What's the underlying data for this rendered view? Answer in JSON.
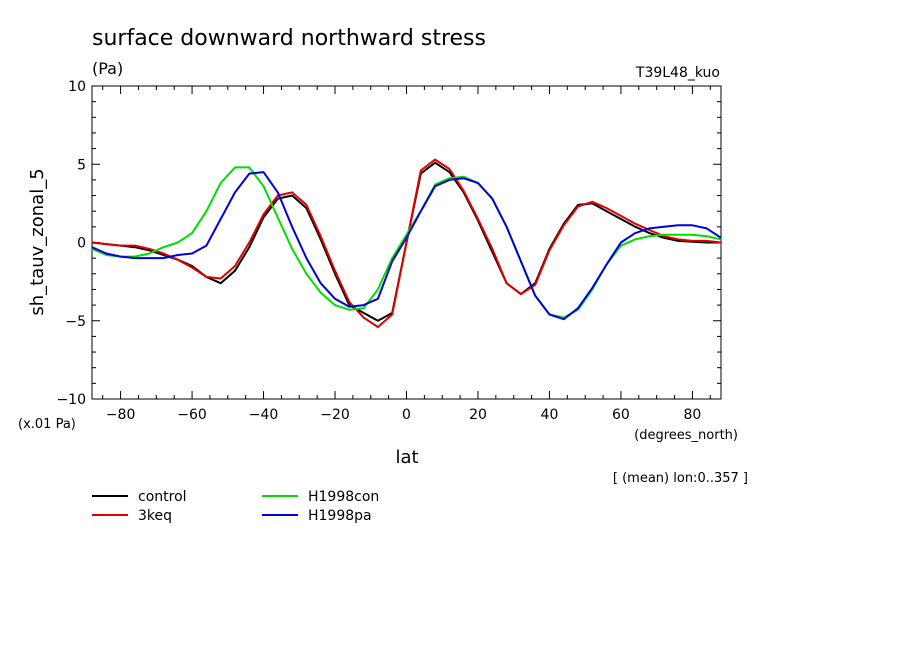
{
  "header": {
    "title": "surface downward northward stress",
    "units": "(Pa)",
    "run_label": "T39L48_kuo",
    "scale_note": "(x.01 Pa)",
    "x_units": "(degrees_north)",
    "mean_note": "[ (mean) lon:0..357 ]"
  },
  "chart_data": {
    "type": "line",
    "title": "surface downward northward stress",
    "xlabel": "lat",
    "ylabel": "sh_tauv_zonal_5",
    "xlim": [
      -88,
      88
    ],
    "ylim": [
      -10,
      10
    ],
    "x_ticks": [
      -80,
      -60,
      -40,
      -20,
      0,
      20,
      40,
      60,
      80
    ],
    "x_tick_labels": [
      "−80",
      "−60",
      "−40",
      "−20",
      "0",
      "20",
      "40",
      "60",
      "80"
    ],
    "y_ticks": [
      -10,
      -5,
      0,
      5,
      10
    ],
    "y_tick_labels": [
      "−10",
      "−5",
      "0",
      "5",
      "10"
    ],
    "grid": false,
    "legend_position": "bottom-left",
    "x": [
      -88,
      -84,
      -80,
      -76,
      -72,
      -68,
      -64,
      -60,
      -56,
      -52,
      -48,
      -44,
      -40,
      -36,
      -32,
      -28,
      -24,
      -20,
      -16,
      -12,
      -8,
      -4,
      0,
      4,
      8,
      12,
      16,
      20,
      24,
      28,
      32,
      36,
      40,
      44,
      48,
      52,
      56,
      60,
      64,
      68,
      72,
      76,
      80,
      84,
      88
    ],
    "series": [
      {
        "name": "control",
        "color": "#000000",
        "values": [
          0.0,
          -0.1,
          -0.2,
          -0.3,
          -0.5,
          -0.8,
          -1.1,
          -1.5,
          -2.2,
          -2.6,
          -1.8,
          -0.3,
          1.6,
          2.8,
          3.0,
          2.2,
          0.2,
          -2.0,
          -4.0,
          -4.5,
          -5.0,
          -4.5,
          0.0,
          4.4,
          5.1,
          4.5,
          3.2,
          1.4,
          -0.6,
          -2.6,
          -3.3,
          -2.6,
          -0.4,
          1.2,
          2.4,
          2.5,
          2.0,
          1.5,
          1.0,
          0.6,
          0.3,
          0.1,
          0.05,
          0.0,
          0.0
        ]
      },
      {
        "name": "3keq",
        "color": "#e00000",
        "values": [
          0.0,
          -0.1,
          -0.2,
          -0.2,
          -0.4,
          -0.7,
          -1.1,
          -1.6,
          -2.2,
          -2.3,
          -1.5,
          0.0,
          1.8,
          3.0,
          3.2,
          2.4,
          0.4,
          -1.8,
          -3.8,
          -4.8,
          -5.4,
          -4.6,
          0.0,
          4.6,
          5.3,
          4.7,
          3.3,
          1.5,
          -0.4,
          -2.6,
          -3.3,
          -2.7,
          -0.5,
          1.1,
          2.3,
          2.6,
          2.2,
          1.7,
          1.2,
          0.8,
          0.4,
          0.2,
          0.1,
          0.1,
          0.0
        ]
      },
      {
        "name": "H1998con",
        "color": "#00dd00",
        "values": [
          -0.4,
          -0.8,
          -0.9,
          -0.9,
          -0.7,
          -0.3,
          0.0,
          0.6,
          2.0,
          3.8,
          4.8,
          4.8,
          3.6,
          1.6,
          -0.4,
          -2.0,
          -3.2,
          -4.0,
          -4.3,
          -4.2,
          -3.0,
          -1.0,
          0.5,
          2.0,
          3.7,
          4.1,
          4.2,
          3.8,
          2.8,
          1.0,
          -1.2,
          -3.4,
          -4.6,
          -4.8,
          -4.3,
          -3.0,
          -1.4,
          -0.2,
          0.2,
          0.4,
          0.5,
          0.5,
          0.5,
          0.4,
          0.2
        ]
      },
      {
        "name": "H1998pa",
        "color": "#0000dd",
        "values": [
          -0.3,
          -0.7,
          -0.9,
          -1.0,
          -1.0,
          -1.0,
          -0.8,
          -0.7,
          -0.2,
          1.5,
          3.2,
          4.4,
          4.5,
          3.2,
          1.0,
          -1.0,
          -2.6,
          -3.6,
          -4.1,
          -4.0,
          -3.6,
          -1.2,
          0.3,
          2.0,
          3.6,
          4.0,
          4.1,
          3.8,
          2.8,
          1.0,
          -1.2,
          -3.4,
          -4.6,
          -4.9,
          -4.2,
          -2.9,
          -1.4,
          0.0,
          0.6,
          0.9,
          1.0,
          1.1,
          1.1,
          0.9,
          0.3
        ]
      }
    ]
  }
}
